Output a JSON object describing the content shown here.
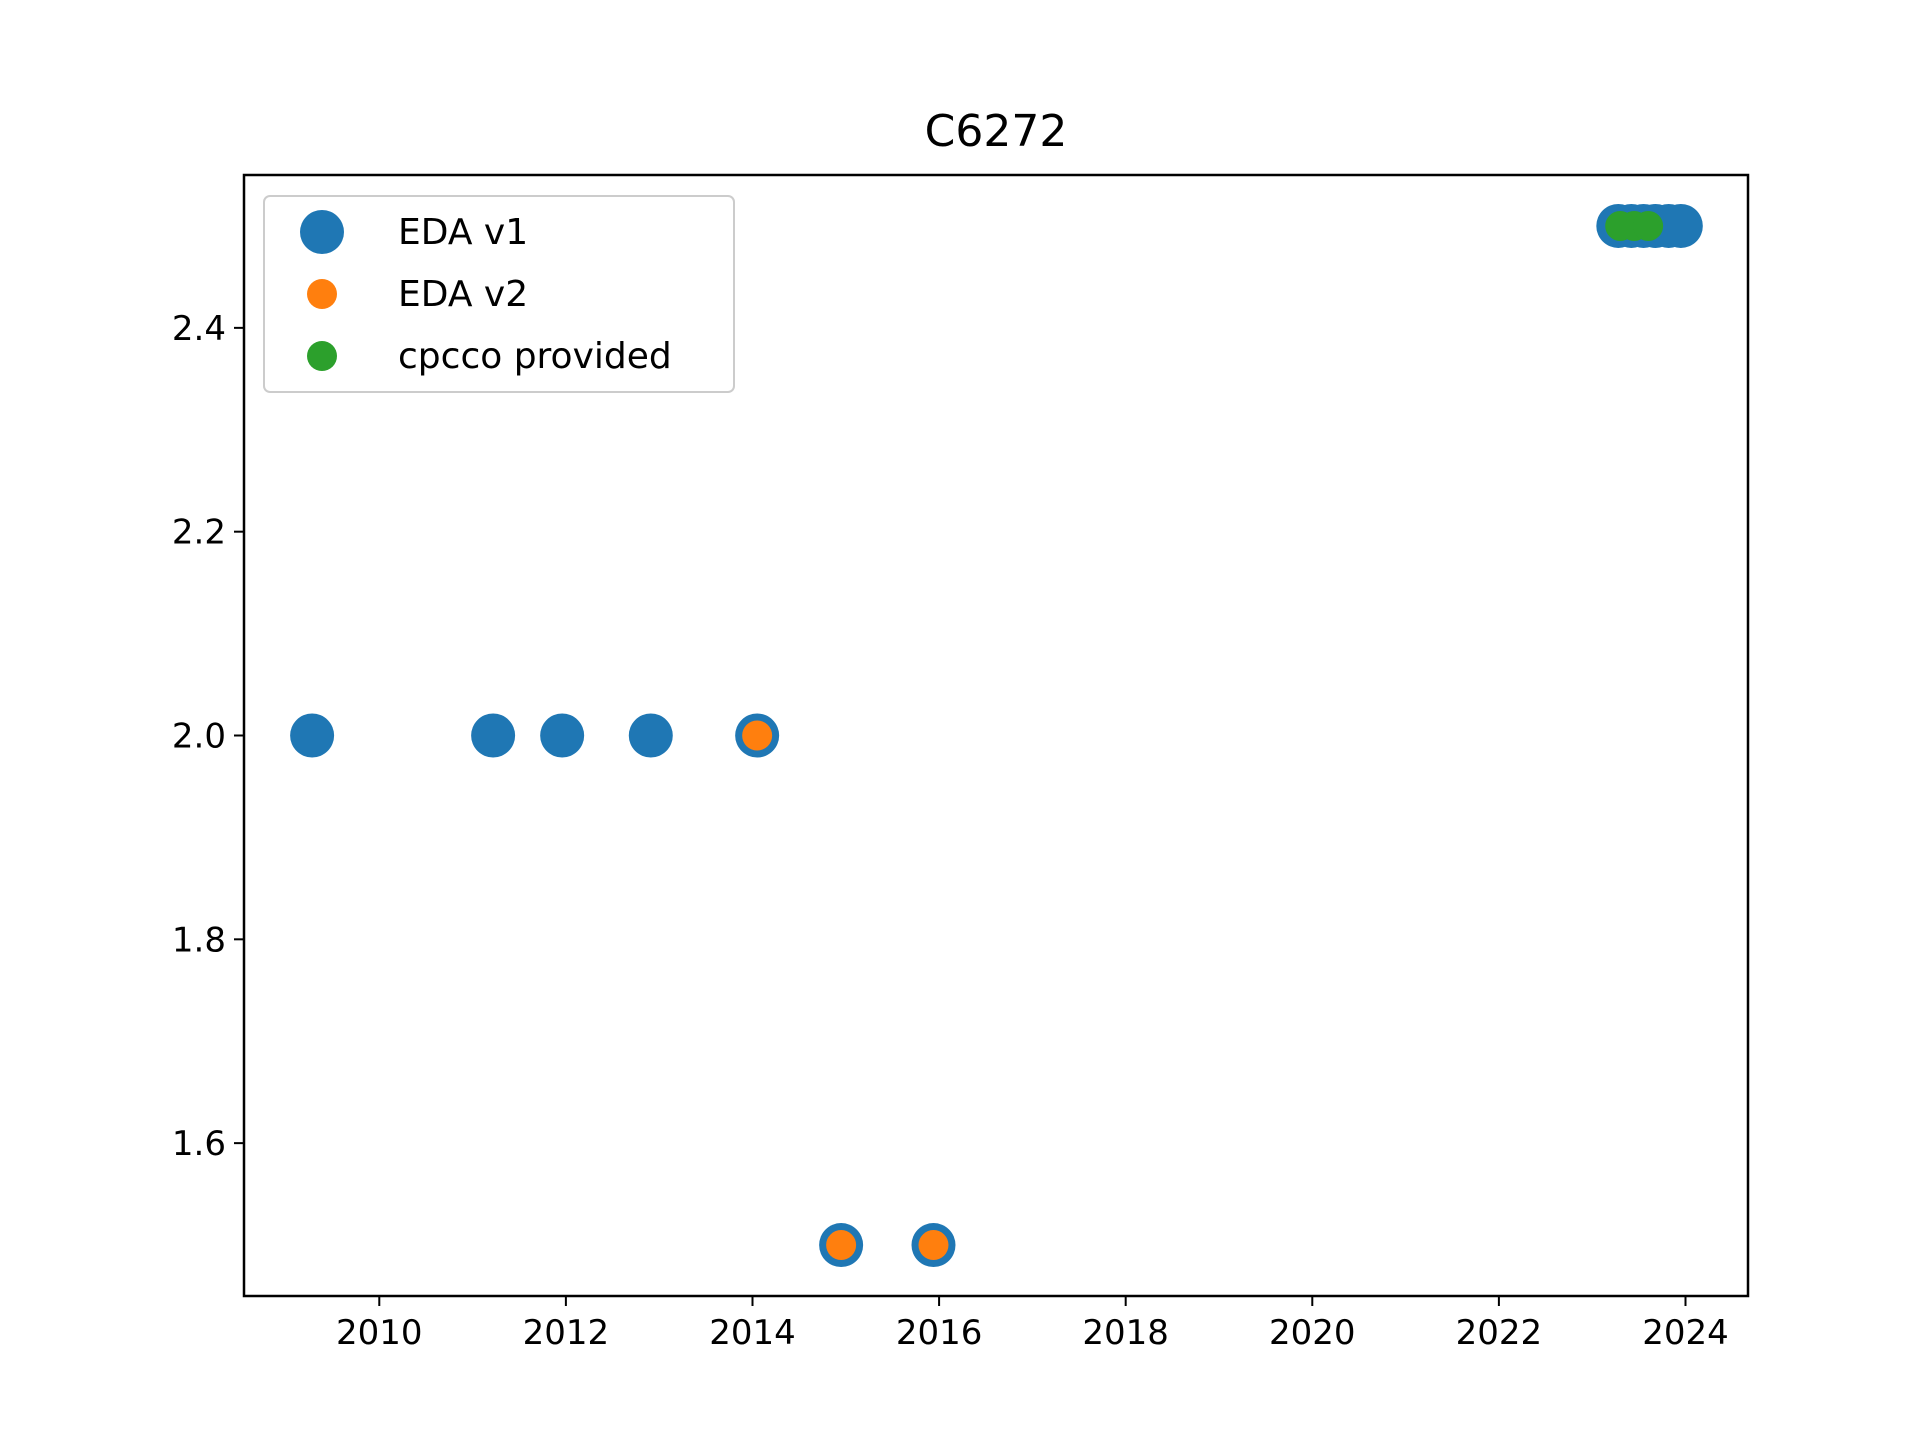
{
  "chart_data": {
    "type": "scatter",
    "title": "C6272",
    "xlabel": "",
    "ylabel": "",
    "xlim": [
      2008.55,
      2024.67
    ],
    "ylim": [
      1.45,
      2.55
    ],
    "x_ticks": [
      {
        "value": 2010,
        "label": "2010"
      },
      {
        "value": 2012,
        "label": "2012"
      },
      {
        "value": 2014,
        "label": "2014"
      },
      {
        "value": 2016,
        "label": "2016"
      },
      {
        "value": 2018,
        "label": "2018"
      },
      {
        "value": 2020,
        "label": "2020"
      },
      {
        "value": 2022,
        "label": "2022"
      },
      {
        "value": 2024,
        "label": "2024"
      }
    ],
    "y_ticks": [
      {
        "value": 1.6,
        "label": "1.6"
      },
      {
        "value": 1.8,
        "label": "1.8"
      },
      {
        "value": 2.0,
        "label": "2.0"
      },
      {
        "value": 2.2,
        "label": "2.2"
      },
      {
        "value": 2.4,
        "label": "2.4"
      }
    ],
    "grid": false,
    "legend_position": "top-left",
    "series": [
      {
        "name": "EDA v1",
        "color": "#1f77b4",
        "marker": "large",
        "points": [
          {
            "x": 2009.28,
            "y": 2.0
          },
          {
            "x": 2011.22,
            "y": 2.0
          },
          {
            "x": 2011.96,
            "y": 2.0
          },
          {
            "x": 2012.91,
            "y": 2.0
          },
          {
            "x": 2014.05,
            "y": 2.0
          },
          {
            "x": 2014.95,
            "y": 1.5
          },
          {
            "x": 2015.94,
            "y": 1.5
          },
          {
            "x": 2023.28,
            "y": 2.5
          },
          {
            "x": 2023.42,
            "y": 2.5
          },
          {
            "x": 2023.55,
            "y": 2.5
          },
          {
            "x": 2023.68,
            "y": 2.5
          },
          {
            "x": 2023.82,
            "y": 2.5
          },
          {
            "x": 2023.95,
            "y": 2.5
          }
        ]
      },
      {
        "name": "EDA v2",
        "color": "#ff7f0e",
        "marker": "small",
        "points": [
          {
            "x": 2014.05,
            "y": 2.0
          },
          {
            "x": 2014.95,
            "y": 1.5
          },
          {
            "x": 2015.94,
            "y": 1.5
          }
        ]
      },
      {
        "name": "cpcco provided",
        "color": "#2ca02c",
        "marker": "small",
        "points": [
          {
            "x": 2023.3,
            "y": 2.5
          },
          {
            "x": 2023.45,
            "y": 2.5
          },
          {
            "x": 2023.6,
            "y": 2.5
          }
        ]
      }
    ]
  }
}
